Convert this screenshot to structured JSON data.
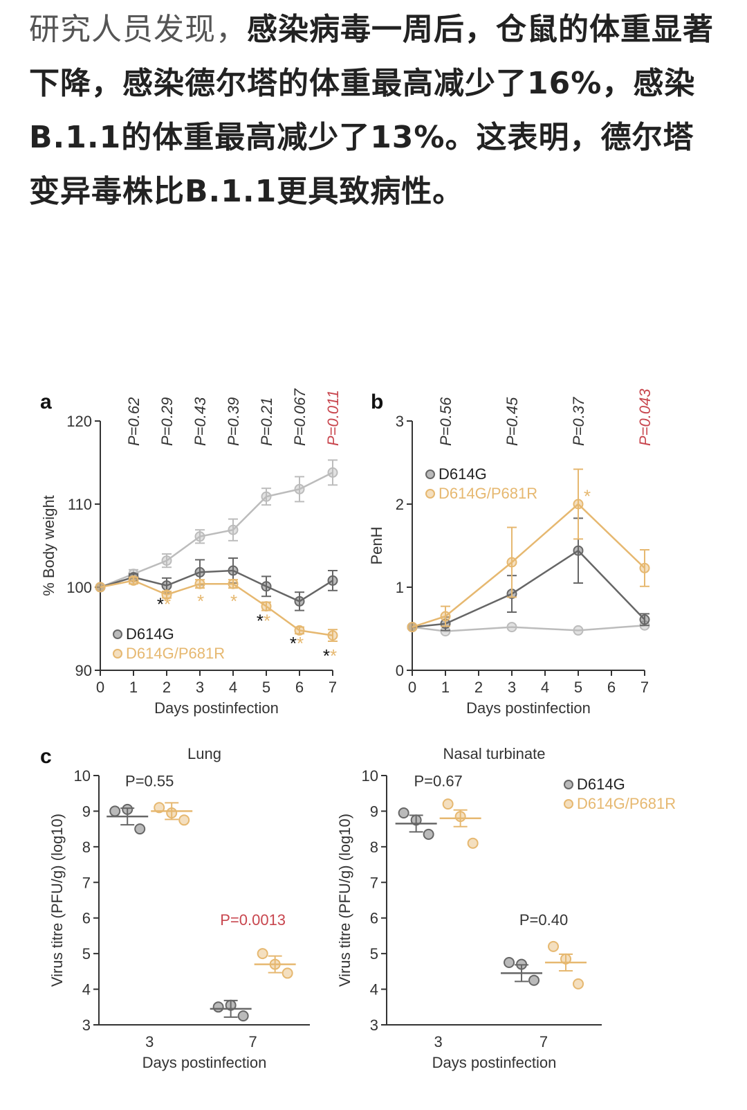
{
  "article": {
    "intro": "研究人员发现，",
    "emphasis": "感染病毒一周后，仓鼠的体重显著下降，感染德尔塔的体重最高减少了16%，感染B.1.1的体重最高减少了13%。这表明，德尔塔变异毒株比B.1.1更具致病性。"
  },
  "colors": {
    "d614g": "#666666",
    "p681r": "#e6b870",
    "mock": "#bcbcbc",
    "significant": "#c8464e",
    "axis": "#333333"
  },
  "chart_data": [
    {
      "panel": "a",
      "type": "line",
      "xlabel": "Days postinfection",
      "ylabel": "% Body weight",
      "xlim": [
        0,
        7
      ],
      "ylim": [
        90,
        120
      ],
      "xticks": [
        0,
        1,
        2,
        3,
        4,
        5,
        6,
        7
      ],
      "yticks": [
        90,
        100,
        110,
        120
      ],
      "legend_position": "bottom-left",
      "series": [
        {
          "name": "",
          "color_key": "mock",
          "x": [
            0,
            1,
            2,
            3,
            4,
            5,
            6,
            7
          ],
          "y": [
            100,
            101.6,
            103.2,
            106.1,
            106.9,
            110.9,
            111.8,
            113.8
          ],
          "err": [
            0,
            0.5,
            0.8,
            0.8,
            1.3,
            1.0,
            1.5,
            1.5
          ]
        },
        {
          "name": "D614G",
          "color_key": "d614g",
          "x": [
            0,
            1,
            2,
            3,
            4,
            5,
            6,
            7
          ],
          "y": [
            100,
            101.2,
            100.2,
            101.8,
            102.0,
            100.1,
            98.3,
            100.8
          ],
          "err": [
            0,
            0.4,
            0.9,
            1.5,
            1.5,
            1.2,
            1.1,
            1.2
          ]
        },
        {
          "name": "D614G/P681R",
          "color_key": "p681r",
          "x": [
            0,
            1,
            2,
            3,
            4,
            5,
            6,
            7
          ],
          "y": [
            100,
            100.8,
            99.1,
            100.4,
            100.4,
            97.7,
            94.8,
            94.2
          ],
          "err": [
            0,
            0.4,
            0.4,
            0.5,
            0.5,
            0.5,
            0.4,
            0.7
          ]
        }
      ],
      "p_values": [
        {
          "x": 1,
          "label": "P=0.62",
          "significant": false
        },
        {
          "x": 2,
          "label": "P=0.29",
          "significant": false
        },
        {
          "x": 3,
          "label": "P=0.43",
          "significant": false
        },
        {
          "x": 4,
          "label": "P=0.39",
          "significant": false
        },
        {
          "x": 5,
          "label": "P=0.21",
          "significant": false
        },
        {
          "x": 6,
          "label": "P=0.067",
          "significant": false
        },
        {
          "x": 7,
          "label": "P=0.011",
          "significant": true
        }
      ],
      "stars": [
        {
          "x": 2,
          "y": 98.2,
          "black": true,
          "orange": true
        },
        {
          "x": 3,
          "y": 98.6,
          "black": false,
          "orange": true
        },
        {
          "x": 4,
          "y": 98.6,
          "black": false,
          "orange": true
        },
        {
          "x": 5,
          "y": 96.2,
          "black": true,
          "orange": true
        },
        {
          "x": 6,
          "y": 93.5,
          "black": true,
          "orange": true
        },
        {
          "x": 7,
          "y": 92.0,
          "black": true,
          "orange": true
        }
      ]
    },
    {
      "panel": "b",
      "type": "line",
      "xlabel": "Days postinfection",
      "ylabel": "PenH",
      "xlim": [
        0,
        7
      ],
      "ylim": [
        0,
        3
      ],
      "xticks": [
        0,
        1,
        2,
        3,
        4,
        5,
        6,
        7
      ],
      "yticks": [
        0,
        1,
        2,
        3
      ],
      "legend_position": "top-left",
      "series": [
        {
          "name": "",
          "color_key": "mock",
          "x": [
            0,
            1,
            3,
            5,
            7
          ],
          "y": [
            0.52,
            0.47,
            0.52,
            0.48,
            0.54
          ],
          "err": [
            0,
            0,
            0,
            0,
            0
          ]
        },
        {
          "name": "D614G",
          "color_key": "d614g",
          "x": [
            0,
            1,
            3,
            5,
            7
          ],
          "y": [
            0.52,
            0.56,
            0.92,
            1.44,
            0.61
          ],
          "err": [
            0,
            0.08,
            0.22,
            0.39,
            0.07
          ]
        },
        {
          "name": "D614G/P681R",
          "color_key": "p681r",
          "x": [
            0,
            1,
            3,
            5,
            7
          ],
          "y": [
            0.52,
            0.65,
            1.3,
            2.0,
            1.23
          ],
          "err": [
            0,
            0.12,
            0.42,
            0.42,
            0.22
          ]
        }
      ],
      "p_values": [
        {
          "x": 1,
          "label": "P=0.56",
          "significant": false
        },
        {
          "x": 3,
          "label": "P=0.45",
          "significant": false
        },
        {
          "x": 5,
          "label": "P=0.37",
          "significant": false
        },
        {
          "x": 7,
          "label": "P=0.043",
          "significant": true
        }
      ],
      "stars": [
        {
          "x": 5.25,
          "y": 2.12,
          "black": false,
          "orange": true
        }
      ]
    },
    {
      "panel": "c",
      "type": "scatter",
      "title": "Lung",
      "xlabel": "Days postinfection",
      "ylabel": "Virus titre (PFU/g) (log10)",
      "categories": [
        "3",
        "7"
      ],
      "ylim": [
        3,
        10
      ],
      "yticks": [
        3,
        4,
        5,
        6,
        7,
        8,
        9,
        10
      ],
      "series": [
        {
          "name": "D614G",
          "color_key": "d614g",
          "points": [
            [
              3,
              9.0
            ],
            [
              3,
              9.05
            ],
            [
              3,
              8.5
            ],
            [
              7,
              3.5
            ],
            [
              7,
              3.55
            ],
            [
              7,
              3.25
            ]
          ],
          "means": [
            [
              3,
              8.85
            ],
            [
              7,
              3.45
            ]
          ]
        },
        {
          "name": "D614G/P681R",
          "color_key": "p681r",
          "points": [
            [
              3,
              9.1
            ],
            [
              3,
              8.95
            ],
            [
              3,
              8.75
            ],
            [
              7,
              5.0
            ],
            [
              7,
              4.7
            ],
            [
              7,
              4.45
            ]
          ],
          "means": [
            [
              3,
              9.0
            ],
            [
              7,
              4.7
            ]
          ]
        }
      ],
      "p_values": [
        {
          "category": "3",
          "label": "P=0.55",
          "y": 9.7,
          "significant": false
        },
        {
          "category": "7",
          "label": "P=0.0013",
          "y": 5.8,
          "significant": true
        }
      ]
    },
    {
      "panel": "c",
      "type": "scatter",
      "title": "Nasal turbinate",
      "xlabel": "Days postinfection",
      "ylabel": "Virus titre (PFU/g) (log10)",
      "categories": [
        "3",
        "7"
      ],
      "ylim": [
        3,
        10
      ],
      "yticks": [
        3,
        4,
        5,
        6,
        7,
        8,
        9,
        10
      ],
      "legend_position": "top-right",
      "series": [
        {
          "name": "D614G",
          "color_key": "d614g",
          "points": [
            [
              3,
              8.95
            ],
            [
              3,
              8.75
            ],
            [
              3,
              8.35
            ],
            [
              7,
              4.75
            ],
            [
              7,
              4.7
            ],
            [
              7,
              4.25
            ]
          ],
          "means": [
            [
              3,
              8.65
            ],
            [
              7,
              4.45
            ]
          ]
        },
        {
          "name": "D614G/P681R",
          "color_key": "p681r",
          "points": [
            [
              3,
              9.2
            ],
            [
              3,
              8.85
            ],
            [
              3,
              8.1
            ],
            [
              7,
              5.2
            ],
            [
              7,
              4.85
            ],
            [
              7,
              4.15
            ]
          ],
          "means": [
            [
              3,
              8.8
            ],
            [
              7,
              4.75
            ]
          ]
        }
      ],
      "p_values": [
        {
          "category": "3",
          "label": "P=0.67",
          "y": 9.7,
          "significant": false
        },
        {
          "category": "7",
          "label": "P=0.40",
          "y": 5.8,
          "significant": false
        }
      ]
    }
  ],
  "figure": {
    "panel_labels": {
      "a": "a",
      "b": "b",
      "c": "c"
    }
  }
}
